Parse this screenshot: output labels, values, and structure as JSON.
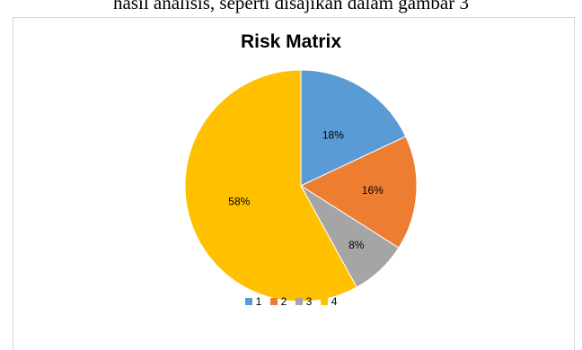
{
  "document_text": "hasil analisis, seperti disajikan dalam gambar 3",
  "chart_data": {
    "type": "pie",
    "title": "Risk Matrix",
    "categories": [
      "1",
      "2",
      "3",
      "4"
    ],
    "values": [
      18,
      16,
      8,
      58
    ],
    "labels": [
      "18%",
      "16%",
      "8%",
      "58%"
    ],
    "colors": [
      "#5b9bd5",
      "#ed7d31",
      "#a5a5a5",
      "#ffc000"
    ],
    "legend_position": "bottom"
  }
}
